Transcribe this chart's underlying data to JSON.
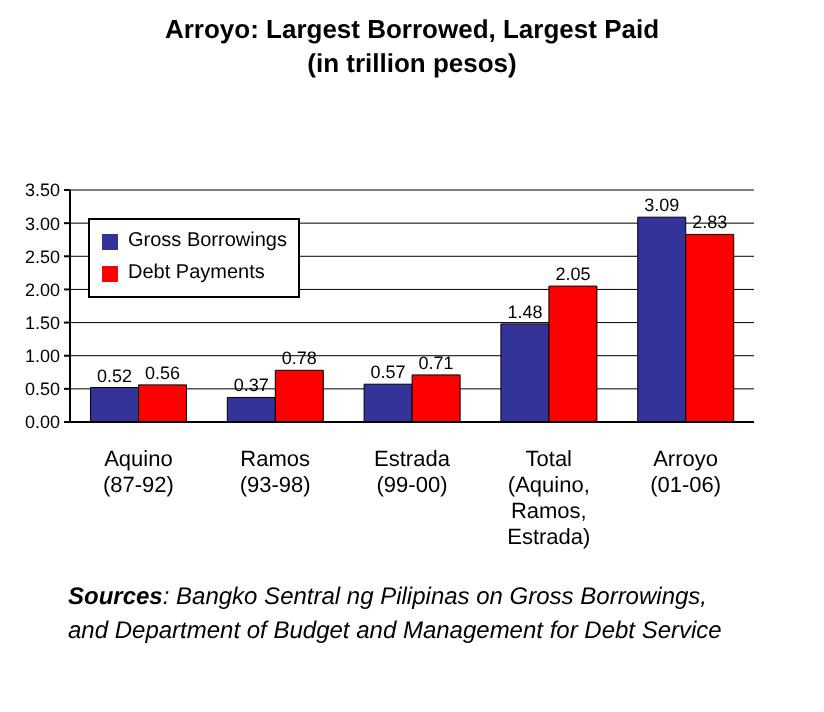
{
  "chart_data": {
    "type": "bar",
    "title": "Arroyo: Largest Borrowed, Largest Paid",
    "subtitle": "(in trillion pesos)",
    "categories": [
      "Aquino (87-92)",
      "Ramos (93-98)",
      "Estrada (99-00)",
      "Total (Aquino, Ramos, Estrada)",
      "Arroyo (01-06)"
    ],
    "series": [
      {
        "name": "Gross Borrowings",
        "color": "#333399",
        "values": [
          0.52,
          0.37,
          0.57,
          1.48,
          3.09
        ]
      },
      {
        "name": "Debt Payments",
        "color": "#ff0000",
        "values": [
          0.56,
          0.78,
          0.71,
          2.05,
          2.83
        ]
      }
    ],
    "ylim": [
      0,
      3.5
    ],
    "yticks": [
      {
        "value": 0,
        "label": "0.00"
      },
      {
        "value": 0.5,
        "label": "0.50"
      },
      {
        "value": 1,
        "label": "1.00"
      },
      {
        "value": 1.5,
        "label": "1.50"
      },
      {
        "value": 2,
        "label": "2.00"
      },
      {
        "value": 2.5,
        "label": "2.50"
      },
      {
        "value": 3,
        "label": "3.00"
      },
      {
        "value": 3.5,
        "label": "3.50"
      }
    ],
    "grid": "y",
    "legend": "top left",
    "data_labels": true,
    "annotations": [
      "Sources: Bangko Sentral ng Pilipinas on Gross Borrowings, and Department of Budget and Management for Debt Service"
    ]
  }
}
